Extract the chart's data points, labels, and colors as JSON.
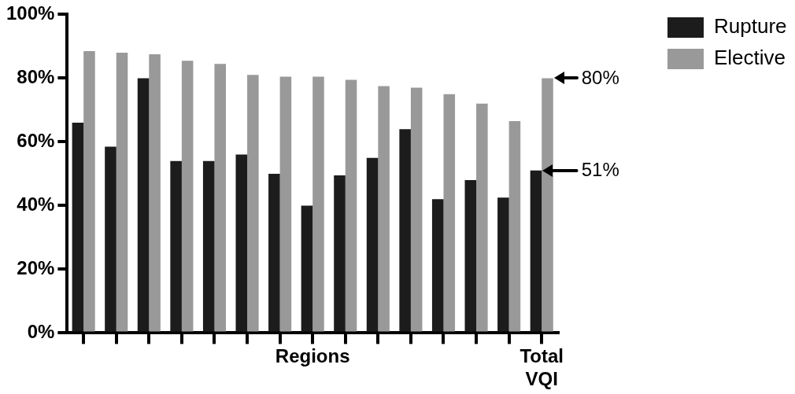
{
  "chart_data": {
    "type": "bar",
    "categories": [
      null,
      null,
      null,
      null,
      null,
      null,
      null,
      "Regions",
      null,
      null,
      null,
      null,
      null,
      null,
      "Total VQI"
    ],
    "series": [
      {
        "name": "Rupture",
        "color": "#1c1c1c",
        "values": [
          66,
          58.5,
          80,
          54,
          54,
          56,
          50,
          40,
          49.5,
          55,
          64,
          42,
          48,
          42.5,
          51
        ]
      },
      {
        "name": "Elective",
        "color": "#999999",
        "values": [
          88.5,
          88,
          87.5,
          85.5,
          84.5,
          81,
          80.5,
          80.5,
          79.5,
          77.5,
          77,
          75,
          72,
          66.5,
          80
        ]
      }
    ],
    "ylim": [
      0,
      100
    ],
    "yticks": [
      {
        "value": 0,
        "label": "0%"
      },
      {
        "value": 20,
        "label": "20%"
      },
      {
        "value": 40,
        "label": "40%"
      },
      {
        "value": 60,
        "label": "60%"
      },
      {
        "value": 80,
        "label": "80%"
      },
      {
        "value": 100,
        "label": "100%"
      }
    ],
    "annotations": [
      {
        "text": "80%",
        "x": "Total VQI",
        "y": 80
      },
      {
        "text": "51%",
        "x": "Total VQI",
        "y": 51
      }
    ],
    "grid": false,
    "legend": "top right"
  }
}
